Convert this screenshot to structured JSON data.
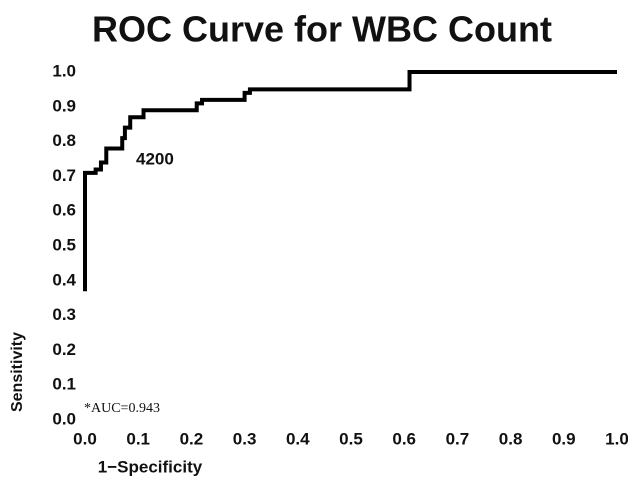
{
  "chart_data": {
    "type": "line",
    "title": "ROC Curve for WBC Count",
    "x_label": "1−Specificity",
    "y_label": "Sensitivity",
    "annotations": [
      "4200",
      "*AUC=0.943"
    ],
    "series": [
      {
        "name": "WBC Count",
        "color": "#000000",
        "x": [
          0.0,
          0.0,
          0.02,
          0.02,
          0.03,
          0.03,
          0.04,
          0.04,
          0.07,
          0.07,
          0.075,
          0.075,
          0.085,
          0.085,
          0.11,
          0.11,
          0.21,
          0.21,
          0.22,
          0.22,
          0.3,
          0.3,
          0.31,
          0.31,
          0.61,
          0.61,
          1.0
        ],
        "values": [
          0.37,
          0.71,
          0.71,
          0.72,
          0.72,
          0.74,
          0.74,
          0.78,
          0.78,
          0.81,
          0.81,
          0.84,
          0.84,
          0.87,
          0.87,
          0.89,
          0.89,
          0.91,
          0.91,
          0.92,
          0.92,
          0.94,
          0.94,
          0.95,
          0.95,
          1.0,
          1.0
        ]
      }
    ],
    "xlim": [
      0,
      1
    ],
    "ylim": [
      0,
      1
    ],
    "xticks": [
      {
        "value": 0,
        "label": "0.0"
      },
      0.1,
      0.2,
      0.3,
      0.4,
      0.5,
      0.6,
      0.7,
      0.8,
      0.9,
      {
        "value": 1,
        "label": "1.0"
      }
    ],
    "yticks": [
      {
        "value": 0,
        "label": "0.0"
      },
      0.1,
      0.2,
      0.3,
      0.4,
      0.5,
      0.6,
      0.7,
      0.8,
      0.9,
      {
        "value": 1,
        "label": "1.0"
      }
    ],
    "grid": false
  }
}
